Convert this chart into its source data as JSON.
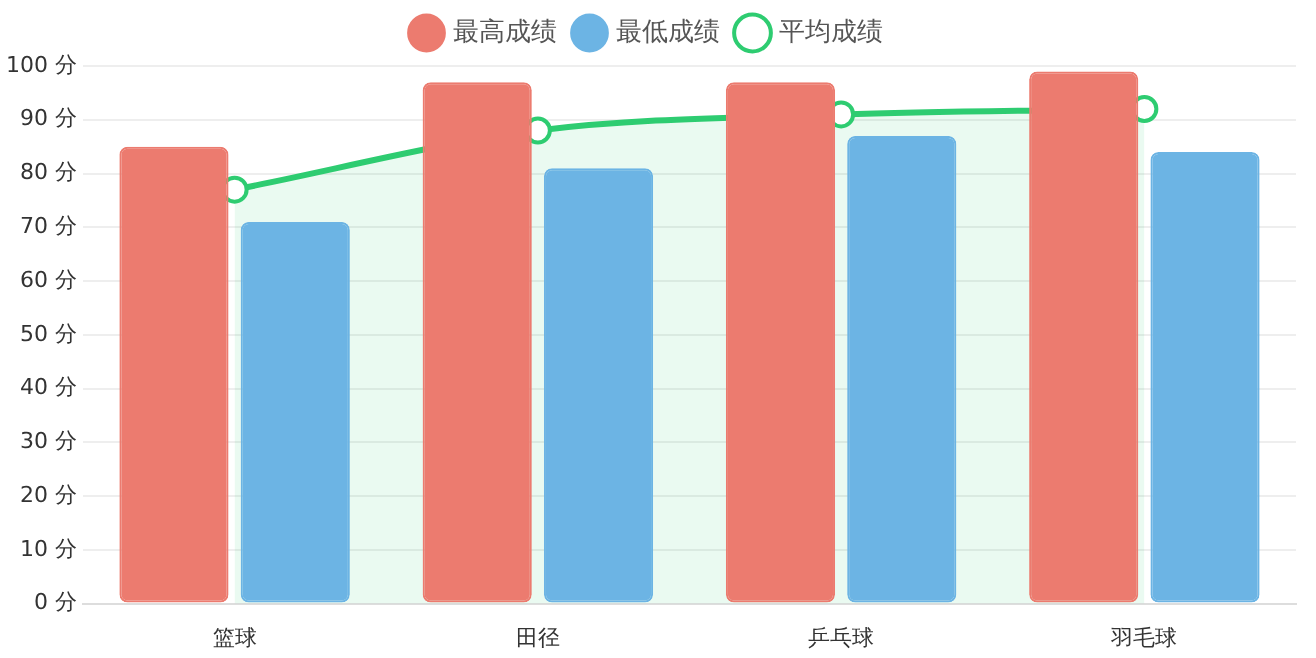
{
  "chart_data": {
    "type": "bar",
    "categories": [
      "篮球",
      "田径",
      "乒乓球",
      "羽毛球"
    ],
    "series": [
      {
        "name": "最高成绩",
        "color": "#ec7b6f",
        "values": [
          85,
          97,
          97,
          99
        ]
      },
      {
        "name": "最低成绩",
        "color": "#6cb4e4",
        "values": [
          71,
          81,
          87,
          84
        ]
      },
      {
        "name": "平均成绩",
        "type": "area",
        "color": "#2ecc71",
        "values": [
          77,
          88,
          91,
          92
        ]
      }
    ],
    "ylim": [
      0,
      100
    ],
    "yticks": [
      {
        "value": 0,
        "label": "0 分"
      },
      {
        "value": 10,
        "label": "10 分"
      },
      {
        "value": 20,
        "label": "20 分"
      },
      {
        "value": 30,
        "label": "30 分"
      },
      {
        "value": 40,
        "label": "40 分"
      },
      {
        "value": 50,
        "label": "50 分"
      },
      {
        "value": 60,
        "label": "60 分"
      },
      {
        "value": 70,
        "label": "70 分"
      },
      {
        "value": 80,
        "label": "80 分"
      },
      {
        "value": 90,
        "label": "90 分"
      },
      {
        "value": 100,
        "label": "100 分"
      }
    ],
    "grid": "y",
    "legend": "top",
    "marker": "circle",
    "line_style": "solid"
  }
}
